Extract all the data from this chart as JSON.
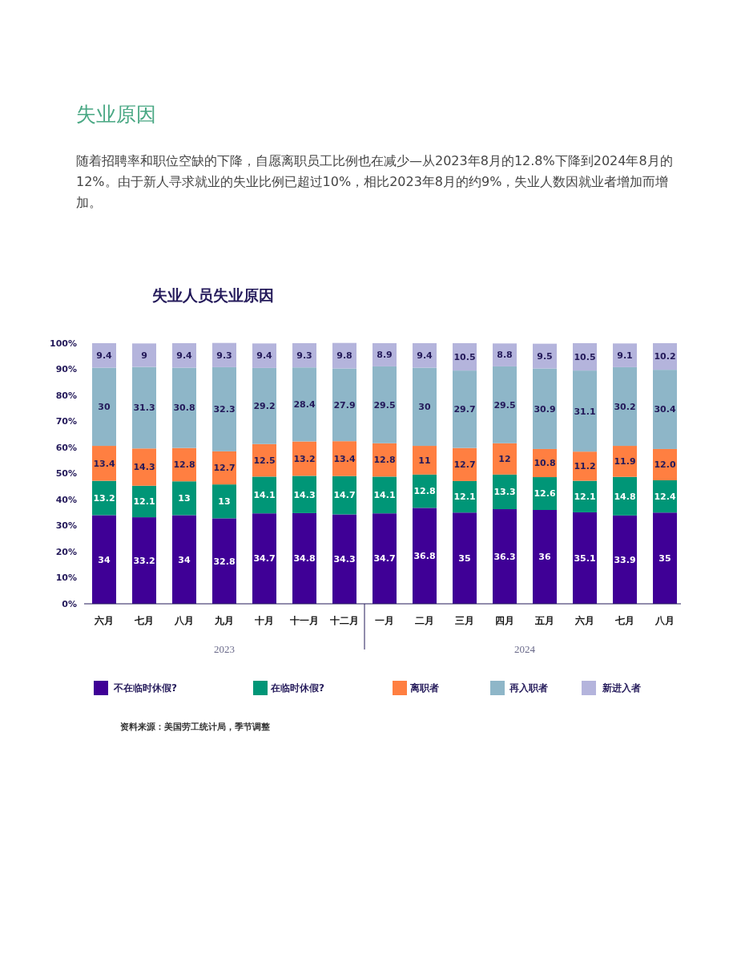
{
  "chart_data": {
    "type": "bar",
    "stacked": true,
    "title": "失业人员失业原因",
    "annotations": [
      "失业原因",
      "随着招聘率和职位空缺的下降，自愿离职员工比例也在减少—从2023年8月的12.8%下降到2024年8月的12%。由于新人寻求就业的失业比例已超过10%，相比2023年8月的约9%，失业人数因就业者增加而增加。",
      "2023",
      "2024",
      "资料来源：美国劳工统计局，季节调整"
    ],
    "categories": [
      "六月",
      "七月",
      "八月",
      "九月",
      "十月",
      "十一月",
      "十二月",
      "一月",
      "二月",
      "三月",
      "四月",
      "五月",
      "六月",
      "七月",
      "八月"
    ],
    "ylim": [
      0,
      100
    ],
    "yticks": [
      {
        "value": 0,
        "label": "0%"
      },
      {
        "value": 10,
        "label": "10%"
      },
      {
        "value": 20,
        "label": "20%"
      },
      {
        "value": 30,
        "label": "30%"
      },
      {
        "value": 40,
        "label": "40%"
      },
      {
        "value": 50,
        "label": "50%"
      },
      {
        "value": 60,
        "label": "60%"
      },
      {
        "value": 70,
        "label": "70%"
      },
      {
        "value": 80,
        "label": "80%"
      },
      {
        "value": 90,
        "label": "90%"
      },
      {
        "value": 100,
        "label": "100%"
      }
    ],
    "legend": "bottom",
    "series": [
      {
        "name": "不在临时休假?",
        "color": "#3f0096",
        "values": [
          34,
          33.2,
          34,
          32.8,
          34.7,
          34.8,
          34.3,
          34.7,
          36.8,
          35,
          36.3,
          36,
          35.1,
          33.9,
          35
        ],
        "value_labels": [
          "34",
          "33.2",
          "34",
          "32.8",
          "34.7",
          "34.8",
          "34.3",
          "34.7",
          "36.8",
          "35",
          "36.3",
          "36",
          "35.1",
          "33.9",
          "35"
        ]
      },
      {
        "name": "在临时休假?",
        "color": "#009677",
        "values": [
          13.2,
          12.1,
          13,
          13,
          14.1,
          14.3,
          14.7,
          14.1,
          12.8,
          12.1,
          13.3,
          12.6,
          12.1,
          14.8,
          12.4
        ],
        "value_labels": [
          "13.2",
          "12.1",
          "13",
          "13",
          "14.1",
          "14.3",
          "14.7",
          "14.1",
          "12.8",
          "12.1",
          "13.3",
          "12.6",
          "12.1",
          "14.8",
          "12.4"
        ]
      },
      {
        "name": "离职者",
        "color": "#ff7f41",
        "values": [
          13.4,
          14.3,
          12.8,
          12.7,
          12.5,
          13.2,
          13.4,
          12.8,
          11,
          12.7,
          12,
          10.8,
          11.2,
          11.9,
          12.0
        ],
        "value_labels": [
          "13.4",
          "14.3",
          "12.8",
          "12.7",
          "12.5",
          "13.2",
          "13.4",
          "12.8",
          "11",
          "12.7",
          "12",
          "10.8",
          "11.2",
          "11.9",
          "12.0"
        ]
      },
      {
        "name": "再入职者",
        "color": "#8eb6c8",
        "values": [
          30,
          31.3,
          30.8,
          32.3,
          29.2,
          28.4,
          27.9,
          29.5,
          30,
          29.7,
          29.5,
          30.9,
          31.1,
          30.2,
          30.4
        ],
        "value_labels": [
          "30",
          "31.3",
          "30.8",
          "32.3",
          "29.2",
          "28.4",
          "27.9",
          "29.5",
          "30",
          "29.7",
          "29.5",
          "30.9",
          "31.1",
          "30.2",
          "30.4"
        ]
      },
      {
        "name": "新进入者",
        "color": "#b4b4dc",
        "values": [
          9.4,
          9,
          9.4,
          9.3,
          9.4,
          9.3,
          9.8,
          8.9,
          9.4,
          10.5,
          8.8,
          9.5,
          10.5,
          9.1,
          10.2
        ],
        "value_labels": [
          "9.4",
          "9",
          "9.4",
          "9.3",
          "9.4",
          "9.3",
          "9.8",
          "8.9",
          "9.4",
          "10.5",
          "8.8",
          "9.5",
          "10.5",
          "9.1",
          "10.2"
        ]
      }
    ]
  }
}
